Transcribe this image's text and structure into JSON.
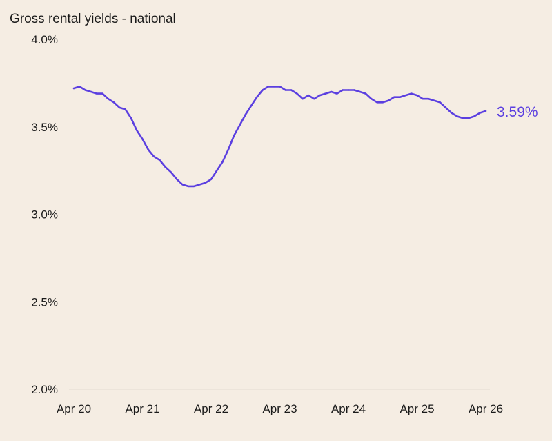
{
  "chart_data": {
    "type": "line",
    "title": "Gross rental yields - national",
    "xlabel": "",
    "ylabel": "",
    "ylim": [
      2.0,
      4.0
    ],
    "y_ticks": [
      "2.0%",
      "2.5%",
      "3.0%",
      "3.5%",
      "4.0%"
    ],
    "y_tick_values": [
      2.0,
      2.5,
      3.0,
      3.5,
      4.0
    ],
    "x_ticks": [
      "Apr 20",
      "Apr 21",
      "Apr 22",
      "Apr 23",
      "Apr 24",
      "Apr 25",
      "Apr 26"
    ],
    "x_tick_months": [
      "2020-04",
      "2021-04",
      "2022-04",
      "2023-04",
      "2024-04",
      "2025-04",
      "2026-04"
    ],
    "grid": false,
    "legend": "none",
    "line_color": "#5b3fe0",
    "end_label": "3.59%",
    "series": [
      {
        "x": [
          "2020-04",
          "2020-05",
          "2020-06",
          "2020-07",
          "2020-08",
          "2020-09",
          "2020-10",
          "2020-11",
          "2020-12",
          "2021-01",
          "2021-02",
          "2021-03",
          "2021-04",
          "2021-05",
          "2021-06",
          "2021-07",
          "2021-08",
          "2021-09",
          "2021-10",
          "2021-11",
          "2021-12",
          "2022-01",
          "2022-02",
          "2022-03",
          "2022-04",
          "2022-05",
          "2022-06",
          "2022-07",
          "2022-08",
          "2022-09",
          "2022-10",
          "2022-11",
          "2022-12",
          "2023-01",
          "2023-02",
          "2023-03",
          "2023-04",
          "2023-05",
          "2023-06",
          "2023-07",
          "2023-08",
          "2023-09",
          "2023-10",
          "2023-11",
          "2023-12",
          "2024-01",
          "2024-02",
          "2024-03",
          "2024-04",
          "2024-05",
          "2024-06",
          "2024-07",
          "2024-08",
          "2024-09",
          "2024-10",
          "2024-11",
          "2024-12",
          "2025-01",
          "2025-02",
          "2025-03",
          "2025-04",
          "2025-05",
          "2025-06",
          "2025-07",
          "2025-08",
          "2025-09",
          "2025-10",
          "2025-11",
          "2025-12",
          "2026-01",
          "2026-02",
          "2026-03",
          "2026-04"
        ],
        "values": [
          3.72,
          3.73,
          3.71,
          3.7,
          3.69,
          3.69,
          3.66,
          3.64,
          3.61,
          3.6,
          3.55,
          3.48,
          3.43,
          3.37,
          3.33,
          3.31,
          3.27,
          3.24,
          3.2,
          3.17,
          3.16,
          3.16,
          3.17,
          3.18,
          3.2,
          3.25,
          3.3,
          3.37,
          3.45,
          3.51,
          3.57,
          3.62,
          3.67,
          3.71,
          3.73,
          3.73,
          3.73,
          3.71,
          3.71,
          3.69,
          3.66,
          3.68,
          3.66,
          3.68,
          3.69,
          3.7,
          3.69,
          3.71,
          3.71,
          3.71,
          3.7,
          3.69,
          3.66,
          3.64,
          3.64,
          3.65,
          3.67,
          3.67,
          3.68,
          3.69,
          3.68,
          3.66,
          3.66,
          3.65,
          3.64,
          3.61,
          3.58,
          3.56,
          3.55,
          3.55,
          3.56,
          3.58,
          3.59
        ]
      }
    ]
  }
}
